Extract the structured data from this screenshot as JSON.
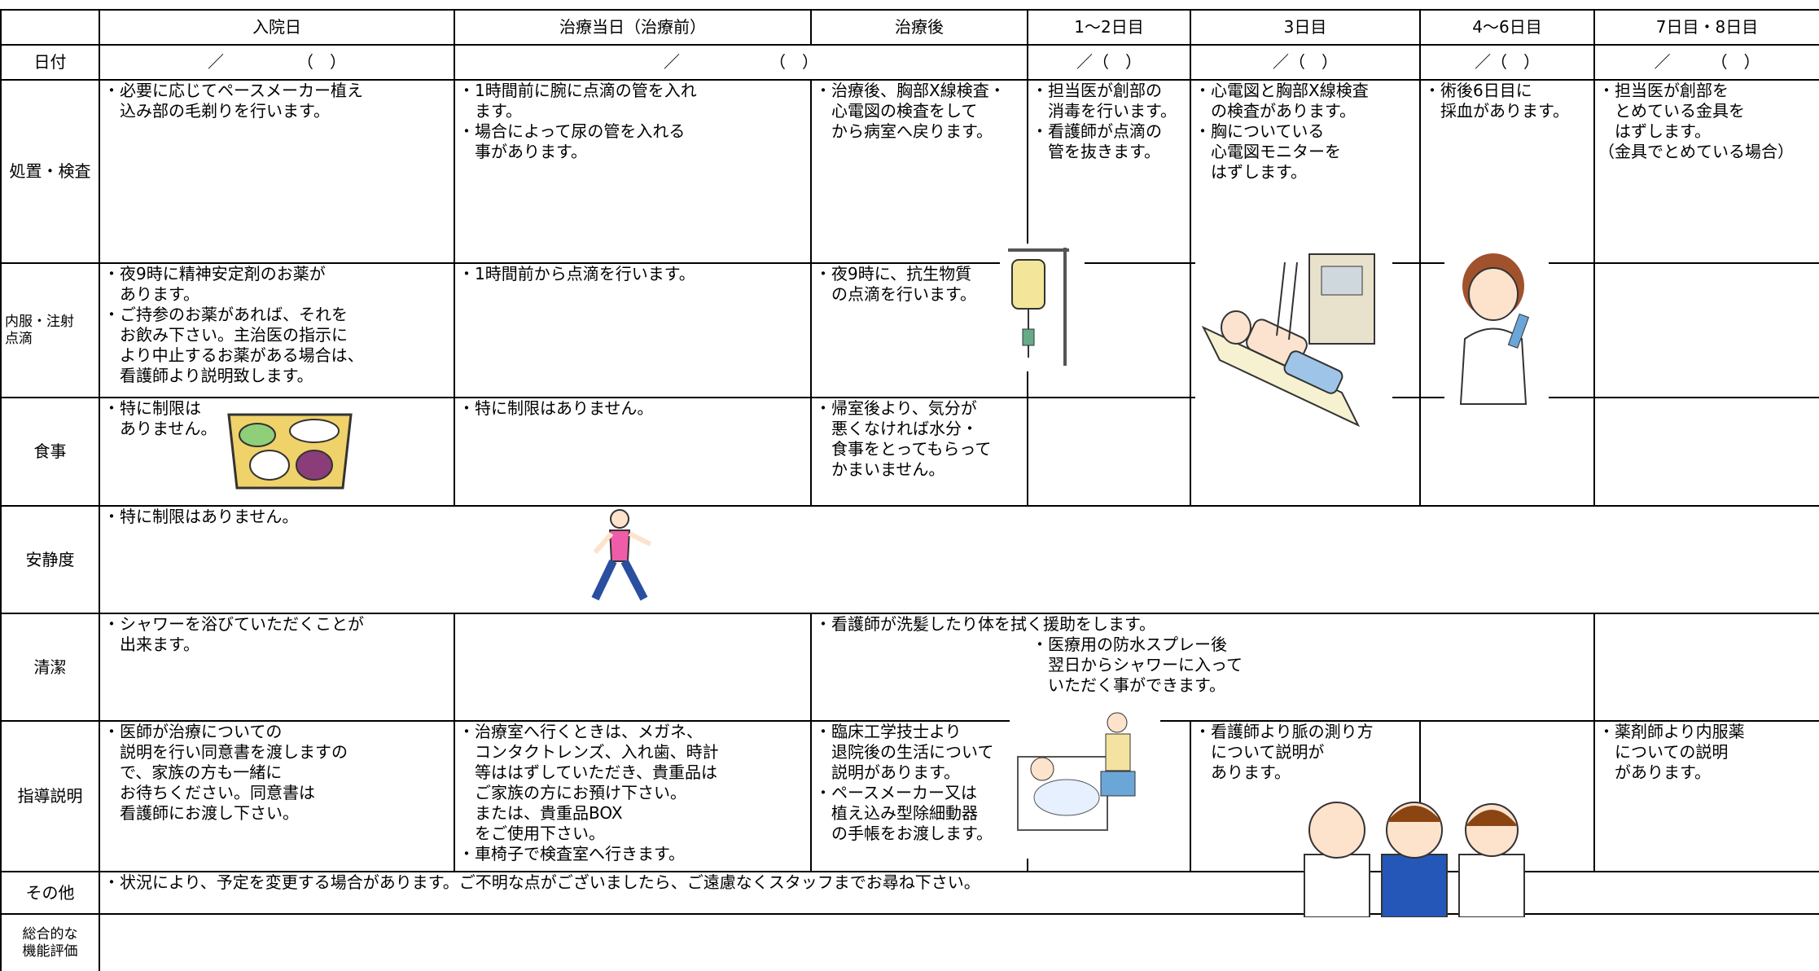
{
  "header": {
    "columns": [
      "入院日",
      "治療当日（治療前）",
      "治療後",
      "1～2日目",
      "3日目",
      "4～6日目",
      "7日目・8日目"
    ]
  },
  "rows": [
    {
      "label": "日付",
      "cells": [
        "／　　　　　（　）",
        "／　　　　　　（　）",
        "／（　）",
        "／（　）",
        "／（　）",
        "／　　　（　）"
      ]
    },
    {
      "label": "処置・検査",
      "cells": [
        "・必要に応じてペースメーカー植え\n　込み部の毛剃りを行います。",
        "・1時間前に腕に点滴の管を入れ\n　ます。\n・場合によって尿の管を入れる\n　事があります。",
        "・治療後、胸部X線検査・\n　心電図の検査をして\n　から病室へ戻ります。",
        "・担当医が創部の\n　消毒を行います。\n・看護師が点滴の\n　管を抜きます。",
        "・心電図と胸部X線検査\n　の検査があります。\n・胸についている\n　心電図モニターを\n　はずします。",
        "・術後6日目に\n　採血があります。",
        "・担当医が創部を\n　とめている金具を\n　はずします。\n（金具でとめている場合）"
      ]
    },
    {
      "label": "内服・注射\n点滴",
      "cells": [
        "・夜9時に精神安定剤のお薬が\n　あります。\n・ご持参のお薬があれば、それを\n　お飲み下さい。主治医の指示に\n　より中止するお薬がある場合は、\n　看護師より説明致します。",
        "・1時間前から点滴を行います。",
        "・夜9時に、抗生物質\n　の点滴を行います。"
      ]
    },
    {
      "label": "食事",
      "cells": [
        "・特に制限は\n　ありません。",
        "・特に制限はありません。",
        "・帰室後より、気分が\n　悪くなければ水分・\n　食事をとってもらって\n　かまいません。"
      ]
    },
    {
      "label": "安静度",
      "cells": [
        "・特に制限はありません。"
      ]
    },
    {
      "label": "清潔",
      "cells": [
        "・シャワーを浴びていただくことが\n　出来ます。",
        "・看護師が洗髪したり体を拭く援助をします。",
        "・医療用の防水スプレー後\n　翌日からシャワーに入って\n　いただく事ができます。"
      ]
    },
    {
      "label": "指導説明",
      "cells": [
        "・医師が治療についての\n　説明を行い同意書を渡しますの\n　で、家族の方も一緒に\n　お待ちください。同意書は\n　看護師にお渡し下さい。",
        "・治療室へ行くときは、メガネ、\n　コンタクトレンズ、入れ歯、時計\n　等ははずしていただき、貴重品は\n　ご家族の方にお預け下さい。\n　または、貴重品BOX\n　をご使用下さい。\n・車椅子で検査室へ行きます。",
        "・臨床工学技士より\n　退院後の生活について\n　説明があります。\n・ペースメーカー又は\n　植え込み型除細動器\n　の手帳をお渡します。",
        "・看護師より脈の測り方\n　について説明が\n　あります。",
        "・薬剤師より内服薬\n　についての説明\n　があります。"
      ]
    },
    {
      "label": "その他",
      "cells": [
        "・状況により、予定を変更する場合があります。ご不明な点がございましたら、ご遠慮なくスタッフまでお尋ね下さい。"
      ]
    },
    {
      "label": "総合的な\n機能評価",
      "cells": []
    }
  ]
}
